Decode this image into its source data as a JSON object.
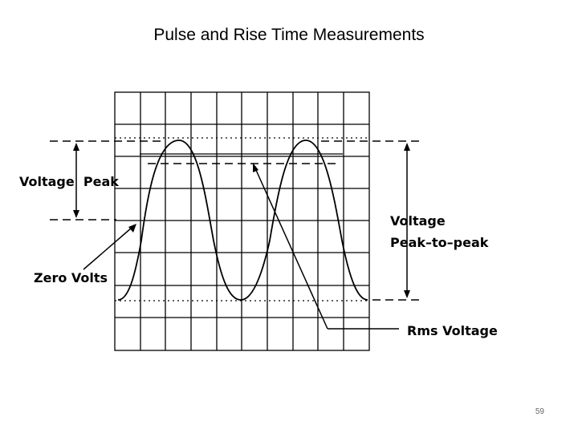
{
  "slide": {
    "title": "Pulse and Rise Time Measurements",
    "page_number": "59"
  },
  "diagram": {
    "labels": {
      "voltage_peak": "Voltage  Peak",
      "zero_volts": "Zero Volts",
      "peak_to_peak_line1": "Voltage",
      "peak_to_peak_line2": "Peak–to–peak",
      "rms_voltage": "Rms Voltage"
    },
    "grid": {
      "columns": 10,
      "rows": 8
    },
    "line_color": "#000000",
    "background": "#ffffff"
  }
}
